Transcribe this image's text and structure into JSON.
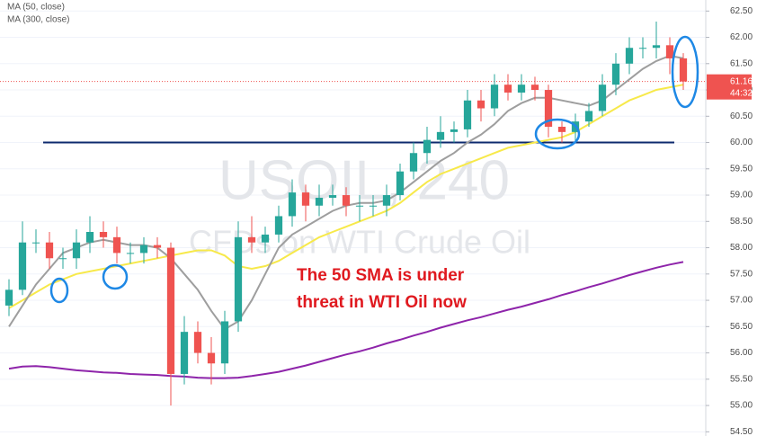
{
  "chart_data": {
    "type": "candlestick",
    "watermark": "USOIL, 240",
    "watermark_subtitle": "CFDs on WTI Crude Oil",
    "annotation": [
      "The 50 SMA is under",
      "threat in WTI Oil now"
    ],
    "up_color": "#26a69a",
    "down_color": "#ef5350",
    "level": 60,
    "level_color": "#0d2a6e",
    "last_price": {
      "value": 61.16,
      "label": "61.16"
    },
    "countdown": "44:32",
    "ylim": [
      54.42,
      62.71
    ],
    "yticks": [
      {
        "value": 62.5,
        "label": "62.50"
      },
      {
        "value": 62,
        "label": "62.00"
      },
      {
        "value": 61.5,
        "label": "61.50"
      },
      {
        "value": 61,
        "label": "61.00"
      },
      {
        "value": 60.5,
        "label": "60.50"
      },
      {
        "value": 60,
        "label": "60.00"
      },
      {
        "value": 59.5,
        "label": "59.50"
      },
      {
        "value": 59,
        "label": "59.00"
      },
      {
        "value": 58.5,
        "label": "58.50"
      },
      {
        "value": 58,
        "label": "58.00"
      },
      {
        "value": 57.5,
        "label": "57.50"
      },
      {
        "value": 57,
        "label": "57.00"
      },
      {
        "value": 56.5,
        "label": "56.50"
      },
      {
        "value": 56,
        "label": "56.00"
      },
      {
        "value": 55.5,
        "label": "55.50"
      },
      {
        "value": 55,
        "label": "55.00"
      },
      {
        "value": 54.5,
        "label": "54.50"
      }
    ],
    "opens": [
      56.9,
      57.2,
      58.1,
      58.1,
      57.8,
      57.8,
      58.1,
      58.3,
      58.2,
      57.9,
      57.9,
      58.05,
      58.0,
      55.6,
      56.4,
      56.0,
      55.8,
      56.6,
      58.2,
      58.1,
      58.25,
      58.6,
      59.05,
      58.8,
      58.95,
      59.0,
      58.8,
      58.8,
      58.8,
      59.0,
      59.45,
      59.8,
      60.05,
      60.2,
      60.25,
      60.8,
      60.65,
      61.1,
      60.95,
      61.1,
      61.0,
      60.3,
      60.2,
      60.4,
      60.6,
      61.1,
      61.5,
      61.8,
      61.8,
      61.85,
      61.6
    ],
    "highs": [
      57.4,
      58.5,
      58.35,
      58.3,
      58.0,
      58.35,
      58.6,
      58.5,
      58.4,
      58.1,
      58.2,
      58.2,
      58.1,
      56.7,
      56.6,
      56.3,
      56.8,
      58.5,
      58.6,
      58.4,
      58.8,
      59.3,
      59.2,
      59.2,
      59.2,
      59.15,
      59.0,
      59.0,
      59.2,
      59.6,
      60.0,
      60.3,
      60.5,
      60.4,
      61.0,
      61.0,
      61.3,
      61.3,
      61.3,
      61.25,
      61.1,
      60.4,
      60.55,
      60.75,
      61.3,
      61.7,
      62.0,
      62.0,
      62.3,
      62.0,
      61.7
    ],
    "lows": [
      56.7,
      57.1,
      57.9,
      57.6,
      57.6,
      57.6,
      57.9,
      58.0,
      57.7,
      57.7,
      57.7,
      57.8,
      55.0,
      55.4,
      55.8,
      55.4,
      55.6,
      56.4,
      57.9,
      57.9,
      58.1,
      58.4,
      58.5,
      58.6,
      58.8,
      58.6,
      58.5,
      58.6,
      58.6,
      58.9,
      59.3,
      59.6,
      59.9,
      60.0,
      60.1,
      60.4,
      60.5,
      60.8,
      60.8,
      60.8,
      60.1,
      60.0,
      60.0,
      60.3,
      60.5,
      60.9,
      61.3,
      61.6,
      61.6,
      61.3,
      61.0
    ],
    "closes": [
      57.2,
      58.1,
      58.1,
      57.8,
      57.8,
      58.1,
      58.3,
      58.2,
      57.9,
      57.9,
      58.05,
      58.0,
      55.6,
      56.4,
      56.0,
      55.8,
      56.6,
      58.2,
      58.1,
      58.25,
      58.6,
      59.05,
      58.8,
      58.95,
      59.0,
      58.8,
      58.8,
      58.8,
      59.0,
      59.45,
      59.8,
      60.05,
      60.2,
      60.25,
      60.8,
      60.65,
      61.1,
      60.95,
      61.1,
      61.0,
      60.3,
      60.2,
      60.4,
      60.6,
      61.1,
      61.5,
      61.8,
      61.8,
      61.85,
      61.6,
      61.16
    ],
    "series": [
      {
        "name": "MA (50, close)",
        "color": "#f7e94a",
        "values": [
          56.85,
          57.0,
          57.15,
          57.3,
          57.4,
          57.5,
          57.55,
          57.6,
          57.65,
          57.7,
          57.75,
          57.8,
          57.85,
          57.9,
          57.95,
          57.95,
          57.85,
          57.65,
          57.6,
          57.65,
          57.75,
          57.9,
          58.05,
          58.2,
          58.3,
          58.4,
          58.5,
          58.6,
          58.7,
          58.85,
          59.05,
          59.25,
          59.4,
          59.5,
          59.6,
          59.7,
          59.8,
          59.9,
          59.95,
          60.0,
          60.05,
          60.1,
          60.2,
          60.35,
          60.5,
          60.65,
          60.8,
          60.9,
          61.0,
          61.05,
          61.1
        ]
      },
      {
        "name": "MA (300, close)",
        "color": "#8e24aa",
        "values": [
          55.7,
          55.74,
          55.75,
          55.73,
          55.7,
          55.67,
          55.65,
          55.63,
          55.62,
          55.6,
          55.59,
          55.58,
          55.56,
          55.55,
          55.53,
          55.52,
          55.52,
          55.53,
          55.56,
          55.6,
          55.64,
          55.7,
          55.76,
          55.83,
          55.9,
          55.97,
          56.03,
          56.1,
          56.18,
          56.25,
          56.33,
          56.4,
          56.48,
          56.55,
          56.62,
          56.68,
          56.75,
          56.82,
          56.88,
          56.95,
          57.02,
          57.1,
          57.17,
          57.25,
          57.32,
          57.4,
          57.48,
          57.55,
          57.62,
          57.68,
          57.73
        ]
      },
      {
        "color": "#9e9e9e",
        "values": [
          56.5,
          56.9,
          57.3,
          57.6,
          57.9,
          58.0,
          58.1,
          58.15,
          58.1,
          58.05,
          58.05,
          58.0,
          57.8,
          57.5,
          57.2,
          56.8,
          56.45,
          56.6,
          57.0,
          57.5,
          58.0,
          58.25,
          58.4,
          58.55,
          58.7,
          58.8,
          58.85,
          58.85,
          58.9,
          59.05,
          59.25,
          59.45,
          59.65,
          59.8,
          60.0,
          60.15,
          60.35,
          60.6,
          60.75,
          60.85,
          60.85,
          60.8,
          60.75,
          60.7,
          60.8,
          61.0,
          61.2,
          61.4,
          61.55,
          61.65,
          61.6
        ]
      }
    ]
  }
}
